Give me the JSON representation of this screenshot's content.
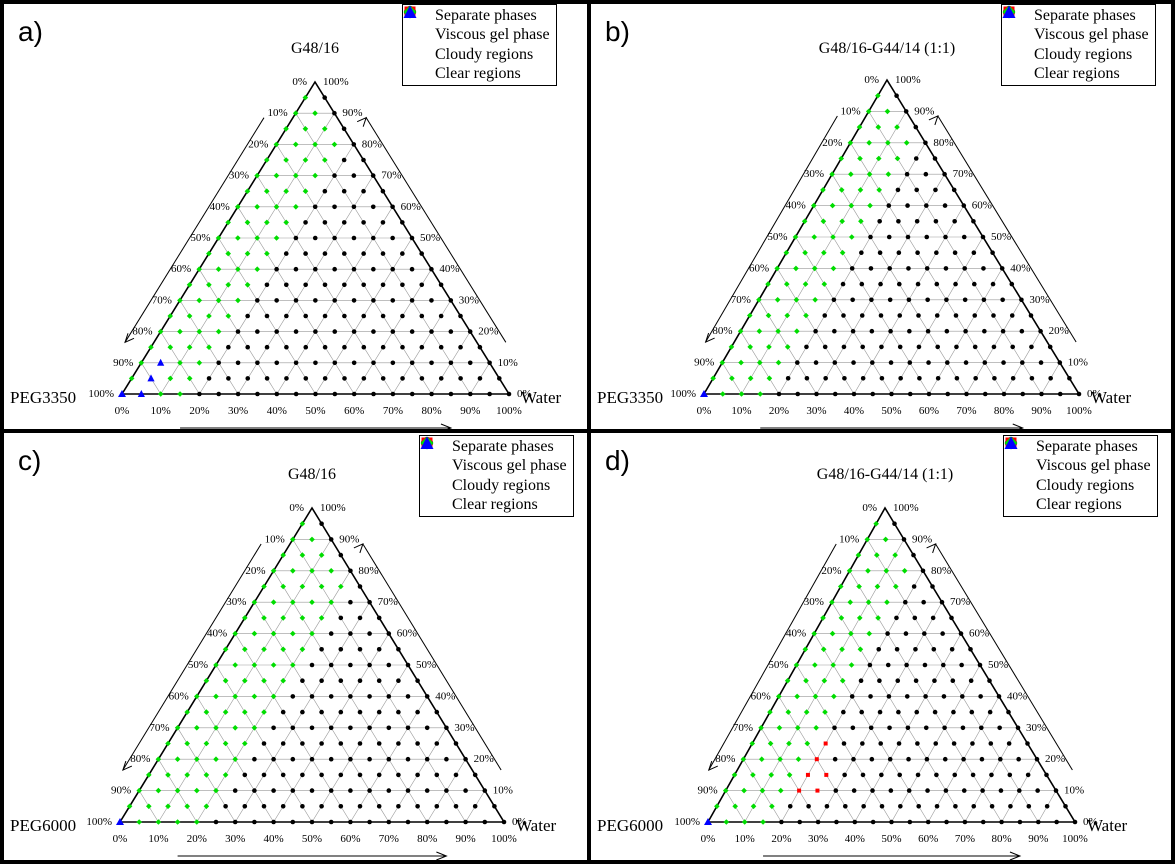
{
  "legend": {
    "entries": [
      {
        "label": "Separate phases",
        "marker": "circle",
        "color": "#000000"
      },
      {
        "label": "Viscous gel phase",
        "marker": "square",
        "color": "#ff0000"
      },
      {
        "label": "Cloudy regions",
        "marker": "diamond",
        "color": "#00dd00"
      },
      {
        "label": "Clear regions",
        "marker": "triangle",
        "color": "#0000ff"
      }
    ]
  },
  "ticks": {
    "left": [
      "0%",
      "10%",
      "20%",
      "30%",
      "40%",
      "50%",
      "60%",
      "70%",
      "80%",
      "90%",
      "100%"
    ],
    "right": [
      "100%",
      "90%",
      "80%",
      "70%",
      "60%",
      "50%",
      "40%",
      "30%",
      "20%",
      "10%",
      "0%"
    ],
    "bottom": [
      "0%",
      "10%",
      "20%",
      "30%",
      "40%",
      "50%",
      "60%",
      "70%",
      "80%",
      "90%",
      "100%"
    ]
  },
  "chart_data": [
    {
      "type": "scatter",
      "panel": "a)",
      "title": "G48/16",
      "corners": {
        "top": "G48/16",
        "left": "PEG3350",
        "right": "Water"
      },
      "regions": {
        "clear_max_c": 1,
        "cloudy_max_c": 3,
        "gel_rule": "d"
      }
    },
    {
      "type": "scatter",
      "panel": "b)",
      "title": "G48/16-G44/14 (1:1)",
      "corners": {
        "top": "G48/16-G44/14 (1:1)",
        "left": "PEG3350",
        "right": "Water"
      },
      "regions": {
        "clear_max_c": 0,
        "cloudy_max_c": 3,
        "gel_rule": "b"
      }
    },
    {
      "type": "scatter",
      "panel": "c)",
      "title": "G48/16",
      "corners": {
        "top": "G48/16",
        "left": "PEG6000",
        "right": "Water"
      },
      "regions": {
        "clear_max_c": 0,
        "cloudy_max_c": 4,
        "gel_rule": "c"
      }
    },
    {
      "type": "scatter",
      "panel": "d)",
      "title": "G48/16-G44/14 (1:1)",
      "corners": {
        "top": "G48/16-G44/14 (1:1)",
        "left": "PEG6000",
        "right": "Water"
      },
      "regions": {
        "clear_max_c": 0,
        "cloudy_max_c": 3,
        "gel_rule": "d2"
      }
    }
  ],
  "colors": {
    "separate": "#000000",
    "gel": "#ff0000",
    "cloudy": "#00dd00",
    "clear": "#0000ff"
  }
}
